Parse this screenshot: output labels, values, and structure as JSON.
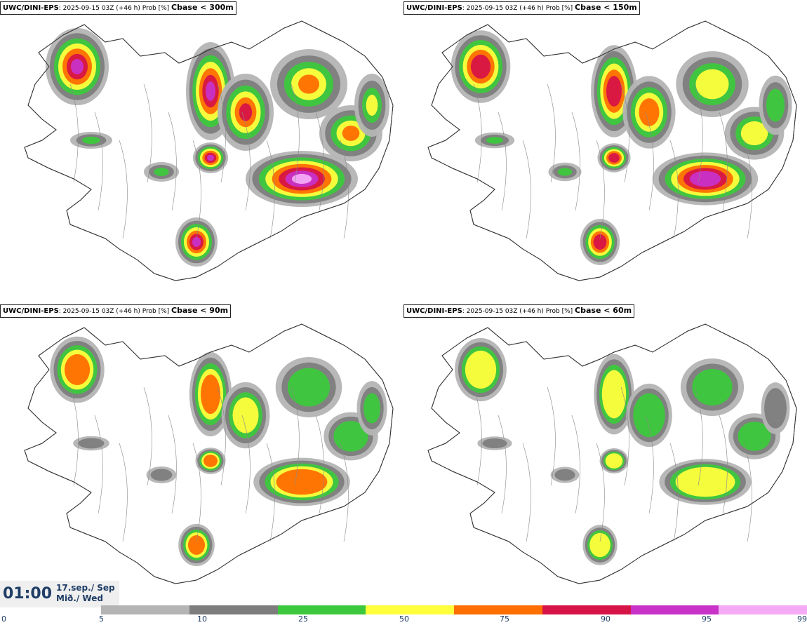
{
  "panels": [
    {
      "model": "UWC/DINI-EPS",
      "meta": ": 2025-09-15 03Z (+46 h) Prob [%] ",
      "cbase": "Cbase < 300m",
      "intensity": 1.0
    },
    {
      "model": "UWC/DINI-EPS",
      "meta": ": 2025-09-15 03Z (+46 h) Prob [%] ",
      "cbase": "Cbase < 150m",
      "intensity": 0.85
    },
    {
      "model": "UWC/DINI-EPS",
      "meta": ": 2025-09-15 03Z (+46 h) Prob [%] ",
      "cbase": "Cbase < 90m",
      "intensity": 0.65
    },
    {
      "model": "UWC/DINI-EPS",
      "meta": ": 2025-09-15 03Z (+46 h) Prob [%] ",
      "cbase": "Cbase < 60m",
      "intensity": 0.55
    }
  ],
  "valid_time": {
    "time": "01:00",
    "date_line1": "17.sep./ Sep",
    "date_line2": "Mið./ Wed"
  },
  "colorbar": {
    "ticks": [
      "0",
      "5",
      "10",
      "25",
      "50",
      "75",
      "90",
      "95",
      "99"
    ],
    "colors": [
      "#b4b4b4",
      "#7d7d7d",
      "#3cc83c",
      "#ffff3c",
      "#ff6e00",
      "#d71446",
      "#c832c8",
      "#f5aaf5"
    ]
  }
}
